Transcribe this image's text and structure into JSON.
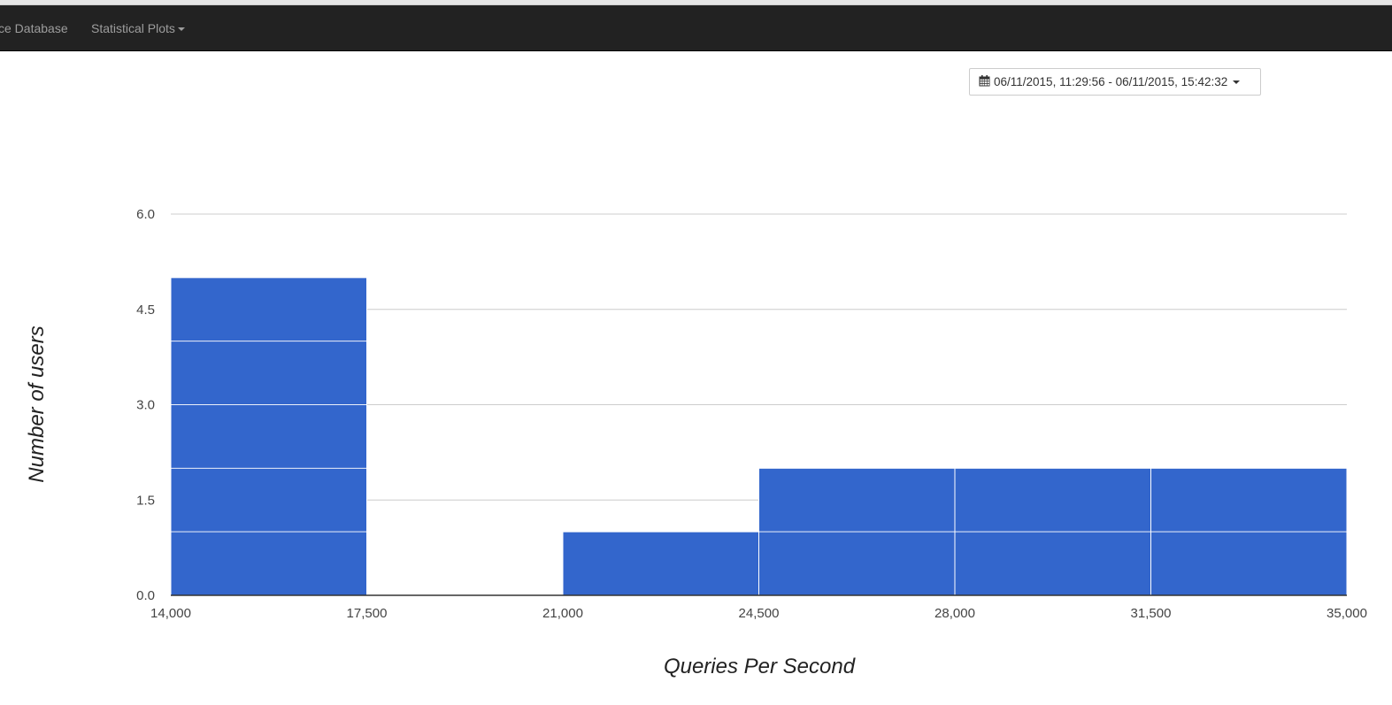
{
  "navbar": {
    "items": [
      {
        "label": "ce Database"
      },
      {
        "label": "Statistical Plots"
      }
    ]
  },
  "date_range": {
    "label": "06/11/2015, 11:29:56 - 06/11/2015, 15:42:32"
  },
  "colors": {
    "bar": "#3366cc",
    "grid": "#cccccc",
    "navbar_bg": "#222222",
    "nav_text": "#9d9d9d"
  },
  "icons": {
    "date_range": "calendar-icon",
    "dropdown": "caret-down-icon"
  },
  "chart_data": {
    "type": "bar",
    "title": "",
    "xlabel": "Queries Per Second",
    "ylabel": "Number of users",
    "xlim": [
      14000,
      35000
    ],
    "ylim": [
      0,
      6
    ],
    "x_ticks": [
      "14,000",
      "17,500",
      "21,000",
      "24,500",
      "28,000",
      "31,500",
      "35,000"
    ],
    "y_ticks": [
      "0.0",
      "1.5",
      "3.0",
      "4.5",
      "6.0"
    ],
    "bins": [
      {
        "start": 14000,
        "end": 17500,
        "value": 5
      },
      {
        "start": 17500,
        "end": 21000,
        "value": 0
      },
      {
        "start": 21000,
        "end": 24500,
        "value": 1
      },
      {
        "start": 24500,
        "end": 28000,
        "value": 2
      },
      {
        "start": 28000,
        "end": 31500,
        "value": 2
      },
      {
        "start": 31500,
        "end": 35000,
        "value": 2
      }
    ],
    "grid": true,
    "legend": "none"
  }
}
